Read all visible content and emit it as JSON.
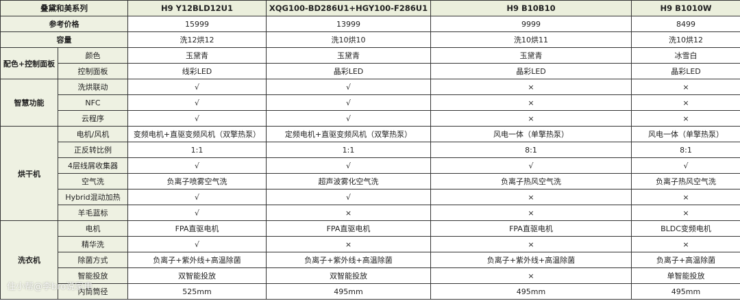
{
  "header": {
    "series": "叠黛和美系列",
    "models": [
      "H9 Y12BLD12U1",
      "XQG100-BD286U1+HGY100-F286U1",
      "H9 B10B10",
      "H9 B1010W"
    ]
  },
  "top_rows": [
    {
      "label": "参考价格",
      "values": [
        "15999",
        "13999",
        "9999",
        "8499"
      ]
    },
    {
      "label": "容量",
      "values": [
        "洗12烘12",
        "洗10烘10",
        "洗10烘11",
        "洗10烘12"
      ]
    }
  ],
  "groups": [
    {
      "name": "配色+控制面板",
      "rows": [
        {
          "label": "颜色",
          "values": [
            "玉黛青",
            "玉黛青",
            "玉黛青",
            "冰雪白"
          ]
        },
        {
          "label": "控制面板",
          "values": [
            "线彩LED",
            "晶彩LED",
            "晶彩LED",
            "晶彩LED"
          ]
        }
      ]
    },
    {
      "name": "智慧功能",
      "rows": [
        {
          "label": "洗烘联动",
          "values": [
            "√",
            "√",
            "×",
            "×"
          ]
        },
        {
          "label": "NFC",
          "values": [
            "√",
            "√",
            "×",
            "×"
          ]
        },
        {
          "label": "云程序",
          "values": [
            "√",
            "√",
            "×",
            "×"
          ]
        }
      ]
    },
    {
      "name": "烘干机",
      "rows": [
        {
          "label": "电机/风机",
          "values": [
            "变频电机+直驱变频风机（双擎热泵）",
            "定频电机+直驱变频风机（双擎热泵）",
            "风电一体（单擎热泵）",
            "风电一体（单擎热泵）"
          ]
        },
        {
          "label": "正反转比例",
          "values": [
            "1:1",
            "1:1",
            "8:1",
            "8:1"
          ]
        },
        {
          "label": "4层线屑收集器",
          "values": [
            "√",
            "√",
            "√",
            "√"
          ]
        },
        {
          "label": "空气洗",
          "values": [
            "负离子喷雾空气洗",
            "超声波雾化空气洗",
            "负离子热风空气洗",
            "负离子热风空气洗"
          ]
        },
        {
          "label": "Hybrid混动加热",
          "values": [
            "√",
            "√",
            "×",
            "×"
          ]
        },
        {
          "label": "羊毛蓝标",
          "values": [
            "√",
            "×",
            "×",
            "×"
          ]
        }
      ]
    },
    {
      "name": "洗衣机",
      "rows": [
        {
          "label": "电机",
          "values": [
            "FPA直驱电机",
            "FPA直驱电机",
            "FPA直驱电机",
            "BLDC变频电机"
          ]
        },
        {
          "label": "精华洗",
          "values": [
            "√",
            "×",
            "×",
            "×"
          ]
        },
        {
          "label": "除菌方式",
          "values": [
            "负离子+紫外线+高温除菌",
            "负离子+紫外线+高温除菌",
            "负离子+紫外线+高温除菌",
            "负离子+高温除菌"
          ]
        },
        {
          "label": "智能投放",
          "values": [
            "双智能投放",
            "双智能投放",
            "×",
            "单智能投放"
          ]
        },
        {
          "label": "内筒筒径",
          "values": [
            "525mm",
            "495mm",
            "495mm",
            "495mm"
          ]
        }
      ]
    }
  ],
  "watermark": "住小帮@李bro说家电"
}
